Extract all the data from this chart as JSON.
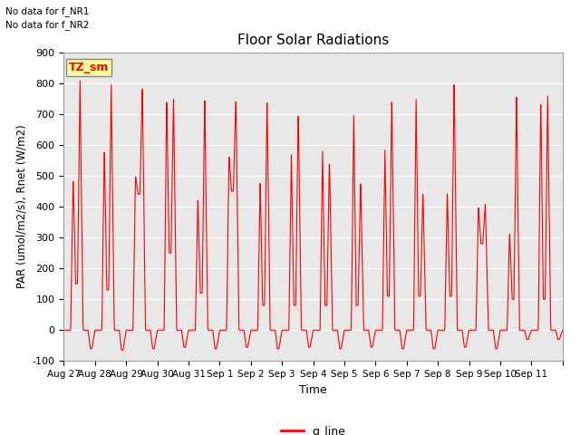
{
  "title": "Floor Solar Radiations",
  "ylabel": "PAR (umol/m2/s), Rnet (W/m2)",
  "xlabel": "Time",
  "ylim": [
    -100,
    900
  ],
  "num_days": 16,
  "text_no_data": [
    "No data for f_NR1",
    "No data for f_NR2"
  ],
  "legend_label": "q_line",
  "legend_color": "#ff0000",
  "line_color": "#ff0000",
  "bg_color": "#e8e8e8",
  "xtick_labels": [
    "Aug 27",
    "Aug 28",
    "Aug 29",
    "Aug 30",
    "Aug 31",
    "Sep 1",
    "Sep 2",
    "Sep 3",
    "Sep 4",
    "Sep 5",
    "Sep 6",
    "Sep 7",
    "Sep 8",
    "Sep 9",
    "Sep 10",
    "Sep 11"
  ],
  "ytick_labels": [
    -100,
    0,
    100,
    200,
    300,
    400,
    500,
    600,
    700,
    800,
    900
  ],
  "legend_box_color": "#ffff99",
  "legend_box_label": "TZ_sm",
  "day_patterns": [
    {
      "peaks": [
        500,
        810
      ],
      "mid_low": 150,
      "night_low": -60
    },
    {
      "peaks": [
        600,
        800
      ],
      "mid_low": 130,
      "night_low": -65
    },
    {
      "peaks": [
        500,
        790
      ],
      "mid_low": 440,
      "night_low": -60
    },
    {
      "peaks": [
        760,
        760
      ],
      "mid_low": 250,
      "night_low": -55
    },
    {
      "peaks": [
        430,
        760
      ],
      "mid_low": 120,
      "night_low": -60
    },
    {
      "peaks": [
        570,
        760
      ],
      "mid_low": 450,
      "night_low": -55
    },
    {
      "peaks": [
        480,
        760
      ],
      "mid_low": 80,
      "night_low": -60
    },
    {
      "peaks": [
        570,
        720
      ],
      "mid_low": 80,
      "night_low": -55
    },
    {
      "peaks": [
        580,
        560
      ],
      "mid_low": 80,
      "night_low": -60
    },
    {
      "peaks": [
        700,
        490
      ],
      "mid_low": 80,
      "night_low": -55
    },
    {
      "peaks": [
        590,
        760
      ],
      "mid_low": 110,
      "night_low": -60
    },
    {
      "peaks": [
        760,
        450
      ],
      "mid_low": 110,
      "night_low": -60
    },
    {
      "peaks": [
        450,
        810
      ],
      "mid_low": 110,
      "night_low": -55
    },
    {
      "peaks": [
        400,
        410
      ],
      "mid_low": 280,
      "night_low": -60
    },
    {
      "peaks": [
        320,
        760
      ],
      "mid_low": 100,
      "night_low": -30
    },
    {
      "peaks": [
        760,
        760
      ],
      "mid_low": 100,
      "night_low": -30
    }
  ]
}
